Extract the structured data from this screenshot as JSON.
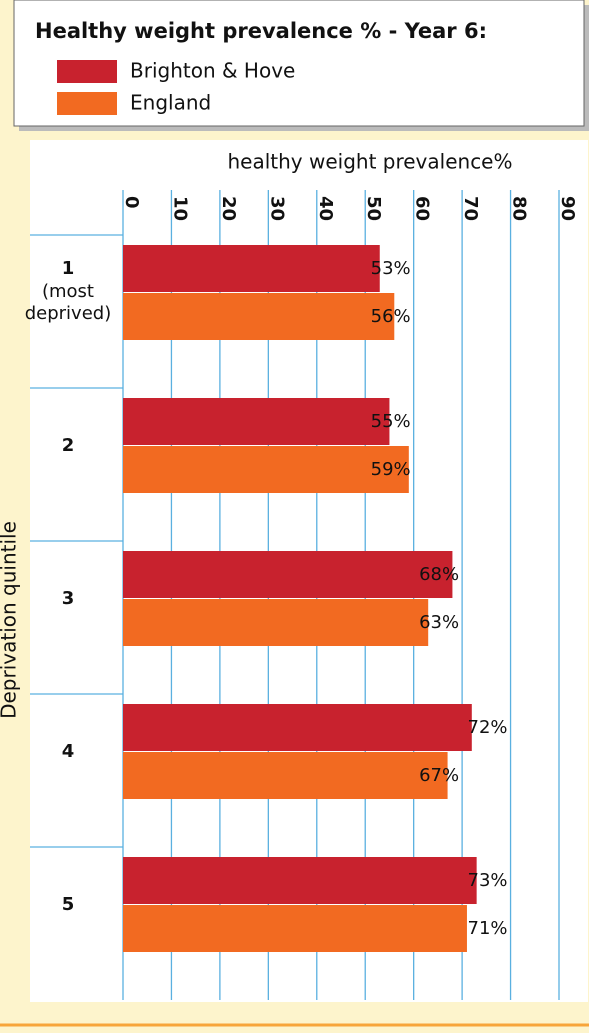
{
  "chart_data": {
    "type": "hbar",
    "title": "Healthy weight prevalence % - Year 6:",
    "x_label": "healthy weight prevalence%",
    "y_label": "Deprivation quintile",
    "categories": [
      "1",
      "2",
      "3",
      "4",
      "5"
    ],
    "category_sublabels": [
      [
        "(most",
        "deprived)"
      ],
      null,
      null,
      null,
      null
    ],
    "series": [
      {
        "name": "Brighton & Hove",
        "color": "#c8222e",
        "values": [
          53,
          55,
          68,
          72,
          73
        ],
        "value_labels": [
          "53%",
          "55%",
          "68%",
          "72%",
          "73%"
        ]
      },
      {
        "name": "England",
        "color": "#f26a21",
        "values": [
          56,
          59,
          63,
          67,
          71
        ],
        "value_labels": [
          "56%",
          "59%",
          "63%",
          "67%",
          "71%"
        ]
      }
    ],
    "xlim": [
      0,
      90
    ],
    "xticks": [
      0,
      10,
      20,
      30,
      40,
      50,
      60,
      70,
      80,
      90
    ],
    "grid": true
  }
}
